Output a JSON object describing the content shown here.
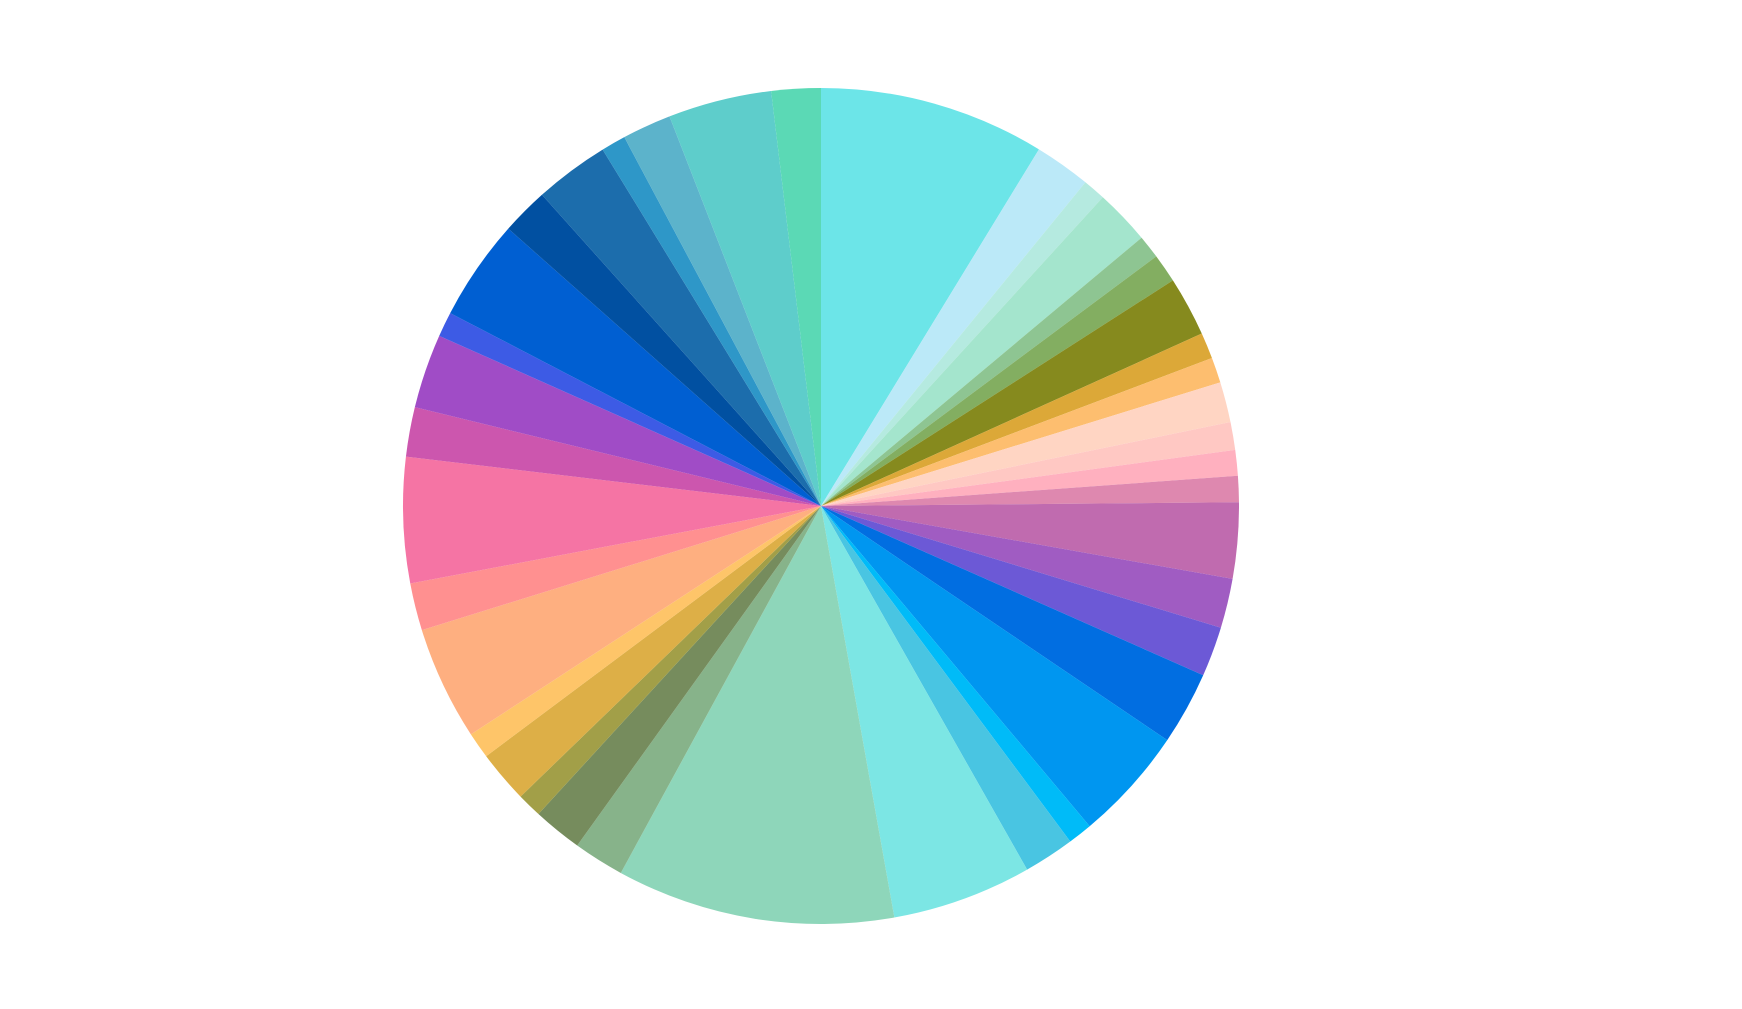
{
  "chart_data": {
    "type": "pie",
    "start_angle_deg": 0,
    "direction": "clockwise",
    "legend": "none",
    "slices": [
      {
        "value": 9.17,
        "color": "#6CE5E8"
      },
      {
        "value": 2.28,
        "color": "#BBE9F8"
      },
      {
        "value": 0.92,
        "color": "#B5EAE0"
      },
      {
        "value": 2.24,
        "color": "#A4E5CD"
      },
      {
        "value": 0.95,
        "color": "#8EC592"
      },
      {
        "value": 1.17,
        "color": "#83AE61"
      },
      {
        "value": 2.42,
        "color": "#868A1E"
      },
      {
        "value": 1.06,
        "color": "#DCA838"
      },
      {
        "value": 1.03,
        "color": "#FDBE6F"
      },
      {
        "value": 1.64,
        "color": "#FFD5C3"
      },
      {
        "value": 1.13,
        "color": "#FFC8C3"
      },
      {
        "value": 1.04,
        "color": "#FFB0BF"
      },
      {
        "value": 1.06,
        "color": "#DE88AF"
      },
      {
        "value": 3.08,
        "color": "#C06BAF"
      },
      {
        "value": 2.01,
        "color": "#A05CC2"
      },
      {
        "value": 2.03,
        "color": "#6C59D6"
      },
      {
        "value": 2.97,
        "color": "#016EE1"
      },
      {
        "value": 4.65,
        "color": "#0096F0"
      },
      {
        "value": 0.99,
        "color": "#00BBF8"
      },
      {
        "value": 2.06,
        "color": "#49C5E2"
      },
      {
        "value": 5.67,
        "color": "#7CE6E4"
      },
      {
        "value": 11.3,
        "color": "#8ED6BA"
      },
      {
        "value": 2.06,
        "color": "#87B38A"
      },
      {
        "value": 2.0,
        "color": "#768C5D"
      },
      {
        "value": 1.0,
        "color": "#A29F48"
      },
      {
        "value": 2.12,
        "color": "#DDAF47"
      },
      {
        "value": 1.07,
        "color": "#FEC569"
      },
      {
        "value": 4.62,
        "color": "#FEAF80"
      },
      {
        "value": 1.92,
        "color": "#FF9090"
      },
      {
        "value": 5.1,
        "color": "#F574A4"
      },
      {
        "value": 2.01,
        "color": "#CC56AE"
      },
      {
        "value": 3.02,
        "color": "#A04CC6"
      },
      {
        "value": 1.01,
        "color": "#3D5BE5"
      },
      {
        "value": 4.11,
        "color": "#005FD2"
      },
      {
        "value": 1.91,
        "color": "#0150A1"
      },
      {
        "value": 3.03,
        "color": "#1C6DAC"
      },
      {
        "value": 1.0,
        "color": "#2E97C8"
      },
      {
        "value": 1.99,
        "color": "#5CB3CB"
      },
      {
        "value": 4.2,
        "color": "#5ECDCB"
      },
      {
        "value": 2.0,
        "color": "#5BD9B5"
      }
    ]
  }
}
